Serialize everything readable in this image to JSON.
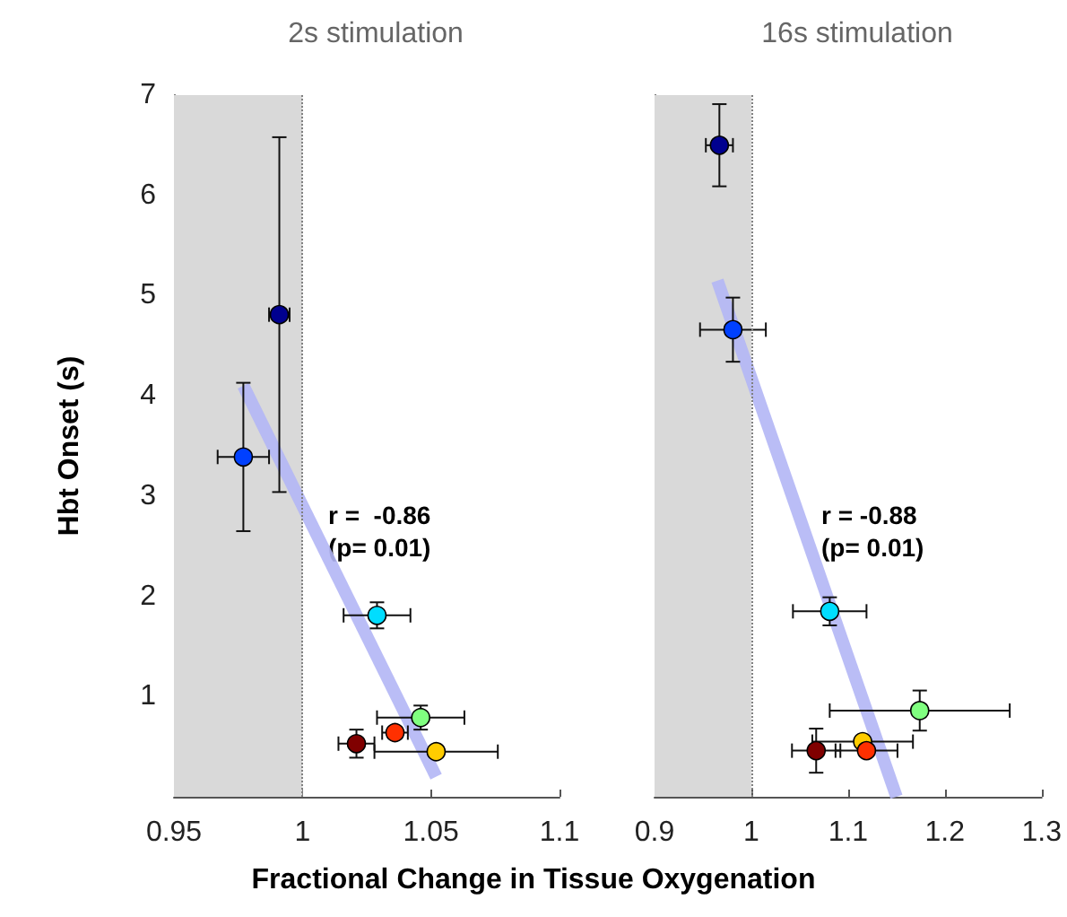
{
  "chart_data": [
    {
      "type": "scatter",
      "title": "2s stimulation",
      "xlabel": "Fractional Change in Tissue Oxygenation",
      "ylabel": "Hbt Onset (s)",
      "annotations": [
        "r =  -0.86\n(p= 0.01)"
      ],
      "xlim": [
        0.95,
        1.1
      ],
      "xticks": [
        0.95,
        1,
        1.05,
        1.1
      ],
      "ylim": [
        0,
        7
      ],
      "yticks": [
        1,
        2,
        3,
        4,
        5,
        6,
        7
      ],
      "marker": "circle",
      "bands": [
        {
          "axis": "x",
          "from": 0.95,
          "to": 1,
          "color": "#d9d9d9"
        }
      ],
      "ref_lines": [
        {
          "axis": "x",
          "value": 1,
          "color": "#808080",
          "line_style": "dotted"
        }
      ],
      "series": [
        {
          "x": [
            0.991,
            0.977,
            1.029,
            1.046,
            1.036,
            1.021,
            1.052
          ],
          "values": [
            4.81,
            3.39,
            1.81,
            0.79,
            0.64,
            0.53,
            0.45
          ],
          "colors": [
            "#00008f",
            "#0040ff",
            "#00ddff",
            "#80ff80",
            "#ff3000",
            "#800000",
            "#ffcc00"
          ],
          "errors": [
            1.77,
            0.74,
            0.13,
            0.12,
            0.05,
            0.14,
            0.05
          ],
          "xerrors": [
            0.004,
            0.01,
            0.013,
            0.017,
            0.005,
            0.007,
            0.024
          ]
        },
        {
          "type": "line",
          "x": [
            0.977,
            1.052
          ],
          "values": [
            4.1,
            0.2
          ],
          "color": "#b3b6f5",
          "line_style": "solid",
          "marker": "none"
        }
      ]
    },
    {
      "type": "scatter",
      "title": "16s stimulation",
      "annotations": [
        "r = -0.88\n(p= 0.01)"
      ],
      "xlim": [
        0.9,
        1.3
      ],
      "xticks": [
        0.9,
        1,
        1.1,
        1.2,
        1.3
      ],
      "ylim": [
        0,
        7
      ],
      "yticks": [
        1,
        2,
        3,
        4,
        5,
        6,
        7
      ],
      "tick_labels": "x",
      "marker": "circle",
      "bands": [
        {
          "axis": "x",
          "from": 0.9,
          "to": 1,
          "color": "#d9d9d9"
        }
      ],
      "ref_lines": [
        {
          "axis": "x",
          "value": 1,
          "color": "#808080",
          "line_style": "dotted"
        }
      ],
      "series": [
        {
          "x": [
            0.967,
            0.981,
            1.081,
            1.174,
            1.115,
            1.119,
            1.067
          ],
          "values": [
            6.5,
            4.66,
            1.85,
            0.86,
            0.55,
            0.46,
            0.46
          ],
          "colors": [
            "#00008f",
            "#0040ff",
            "#00ddff",
            "#80ff80",
            "#ffcc00",
            "#ff3000",
            "#800000"
          ],
          "errors": [
            0.41,
            0.32,
            0.14,
            0.2,
            0.05,
            0.05,
            0.22
          ],
          "xerrors": [
            0.014,
            0.034,
            0.038,
            0.093,
            0.052,
            0.032,
            0.025
          ]
        },
        {
          "type": "line",
          "x": [
            0.965,
            1.15
          ],
          "values": [
            5.15,
            0
          ],
          "color": "#b3b6f5",
          "line_style": "solid",
          "marker": "none"
        }
      ]
    }
  ]
}
